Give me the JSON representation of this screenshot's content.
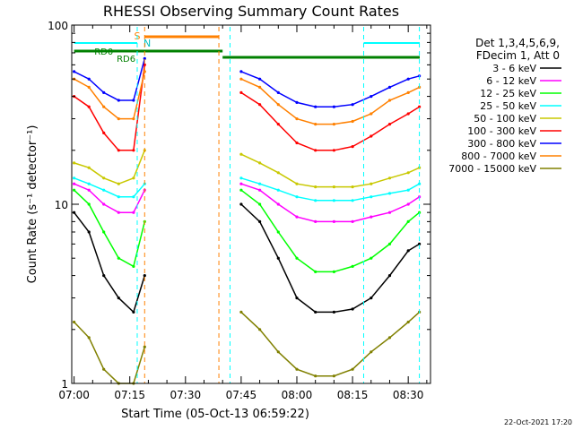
{
  "chart_data": {
    "type": "line",
    "title": "RHESSI Observing Summary Count Rates",
    "xlabel": "Start Time (05-Oct-13 06:59:22)",
    "ylabel": "Count Rate (s⁻¹ detector⁻¹)",
    "yscale": "log",
    "ylim": [
      1,
      100
    ],
    "y_ticks": [
      {
        "value": 1,
        "label": "1"
      },
      {
        "value": 10,
        "label": "10"
      },
      {
        "value": 100,
        "label": "100"
      }
    ],
    "x_ticks": [
      "07:00",
      "07:15",
      "07:30",
      "07:45",
      "08:00",
      "08:15",
      "08:30"
    ],
    "legend": {
      "position": "top-right",
      "header": [
        "Det 1,3,4,5,6,9,",
        "FDecim 1, Att 0"
      ]
    },
    "annotations": {
      "flags": [
        {
          "label": "RD0",
          "color": "#008000"
        },
        {
          "label": "RD6",
          "color": "#008000"
        },
        {
          "label": "S",
          "color": "#ff8000"
        },
        {
          "label": "N",
          "color": "#00c0c0"
        }
      ],
      "timestamp": "22-Oct-2021 17:20"
    },
    "x": [
      "07:00",
      "07:04",
      "07:08",
      "07:12",
      "07:16",
      "07:19",
      "07:45",
      "07:50",
      "07:55",
      "08:00",
      "08:05",
      "08:10",
      "08:15",
      "08:20",
      "08:25",
      "08:30",
      "08:33"
    ],
    "series": [
      {
        "name": "3 - 6 keV",
        "color": "#000000",
        "values": [
          9,
          7,
          4,
          3,
          2.5,
          4,
          10,
          8,
          5,
          3,
          2.5,
          2.5,
          2.6,
          3,
          4,
          5.5,
          6
        ]
      },
      {
        "name": "6 - 12 keV",
        "color": "#ff00ff",
        "values": [
          13,
          12,
          10,
          9,
          9,
          12,
          13,
          12,
          10,
          8.5,
          8,
          8,
          8,
          8.5,
          9,
          10,
          11
        ]
      },
      {
        "name": "12 - 25 keV",
        "color": "#00ff00",
        "values": [
          12,
          10,
          7,
          5,
          4.5,
          8,
          12,
          10,
          7,
          5,
          4.2,
          4.2,
          4.5,
          5,
          6,
          8,
          9
        ]
      },
      {
        "name": "25 - 50 keV",
        "color": "#00ffff",
        "values": [
          14,
          13,
          12,
          11,
          11,
          13,
          14,
          13,
          12,
          11,
          10.5,
          10.5,
          10.5,
          11,
          11.5,
          12,
          13
        ]
      },
      {
        "name": "50 - 100 keV",
        "color": "#c8c800",
        "values": [
          17,
          16,
          14,
          13,
          14,
          20,
          19,
          17,
          15,
          13,
          12.5,
          12.5,
          12.5,
          13,
          14,
          15,
          16
        ]
      },
      {
        "name": "100 - 300 keV",
        "color": "#ff0000",
        "values": [
          40,
          35,
          25,
          20,
          20,
          60,
          42,
          36,
          28,
          22,
          20,
          20,
          21,
          24,
          28,
          32,
          35
        ]
      },
      {
        "name": "300 - 800 keV",
        "color": "#0000ff",
        "values": [
          55,
          50,
          42,
          38,
          38,
          65,
          55,
          50,
          42,
          37,
          35,
          35,
          36,
          40,
          45,
          50,
          52
        ]
      },
      {
        "name": "800 - 7000 keV",
        "color": "#ff8000",
        "values": [
          50,
          45,
          35,
          30,
          30,
          55,
          50,
          45,
          36,
          30,
          28,
          28,
          29,
          32,
          38,
          42,
          45
        ]
      },
      {
        "name": "7000 - 15000 keV",
        "color": "#808000",
        "values": [
          2.2,
          1.8,
          1.2,
          1.0,
          1.0,
          1.6,
          2.5,
          2.0,
          1.5,
          1.2,
          1.1,
          1.1,
          1.2,
          1.5,
          1.8,
          2.2,
          2.5
        ]
      }
    ]
  }
}
